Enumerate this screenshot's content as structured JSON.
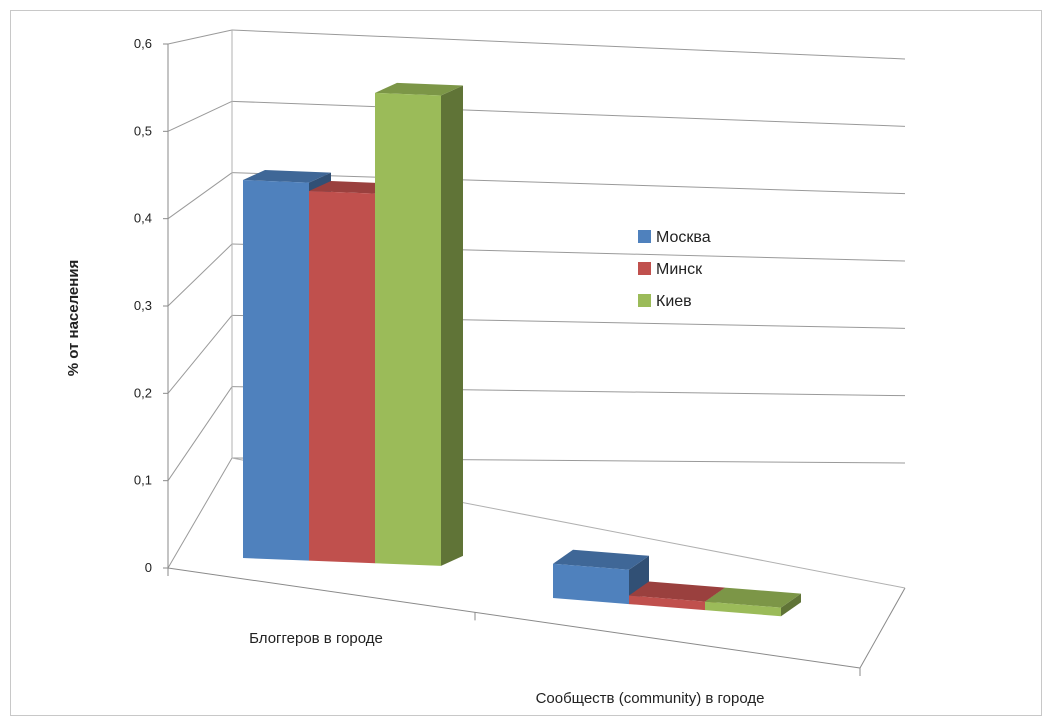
{
  "chart_data": {
    "type": "bar",
    "title": "",
    "xlabel": "",
    "ylabel": "% от населения",
    "ylim": [
      0,
      0.6
    ],
    "yticks": [
      "0",
      "0,1",
      "0,2",
      "0,3",
      "0,4",
      "0,5",
      "0,6"
    ],
    "categories": [
      "Блоггеров в городе",
      "Сообществ (community) в городе"
    ],
    "series": [
      {
        "name": "Москва",
        "color": "#4f81bd",
        "values": [
          0.45,
          0.06
        ]
      },
      {
        "name": "Минск",
        "color": "#c0504d",
        "values": [
          0.44,
          0.015
        ]
      },
      {
        "name": "Киев",
        "color": "#9bbb59",
        "values": [
          0.56,
          0.015
        ]
      }
    ],
    "legend_position": "right",
    "grid": true,
    "style": "3d-clustered-column"
  }
}
